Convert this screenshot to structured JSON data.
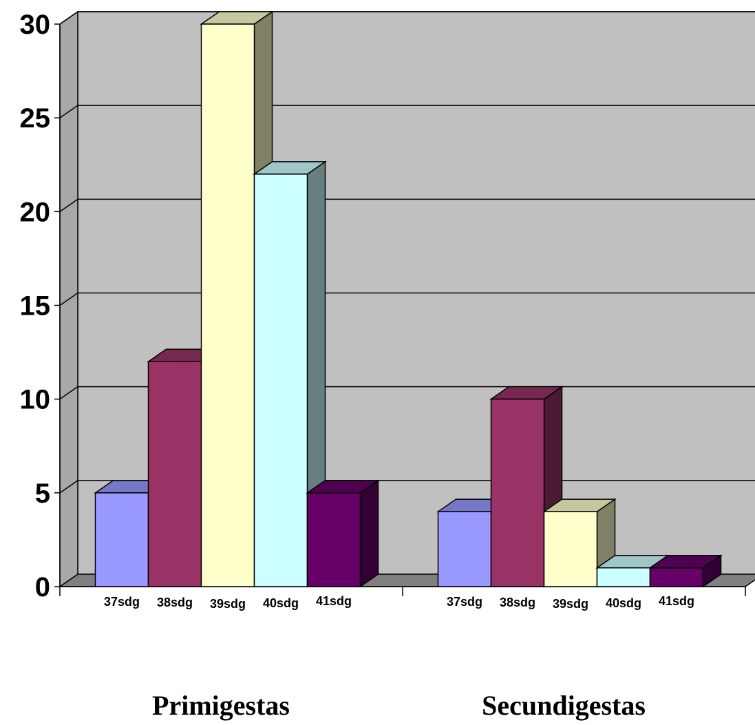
{
  "chart_data": {
    "type": "bar",
    "subtype": "3d-clustered-column",
    "categories": [
      "Primigestas",
      "Secundigestas"
    ],
    "series": [
      {
        "name": "37sdg",
        "values": [
          5,
          4
        ],
        "color": "#9999FF"
      },
      {
        "name": "38sdg",
        "values": [
          12,
          10
        ],
        "color": "#993366"
      },
      {
        "name": "39sdg",
        "values": [
          30,
          4
        ],
        "color": "#FFFFCC"
      },
      {
        "name": "40sdg",
        "values": [
          22,
          1
        ],
        "color": "#CCFFFF"
      },
      {
        "name": "41sdg",
        "values": [
          5,
          1
        ],
        "color": "#660066"
      }
    ],
    "y_ticks": [
      "0",
      "5",
      "10",
      "15",
      "20",
      "25",
      "30"
    ],
    "ylim": [
      0,
      30
    ],
    "grid": true,
    "legend": "none",
    "wall_color": "#C0C0C0",
    "floor_color": "#808080"
  }
}
